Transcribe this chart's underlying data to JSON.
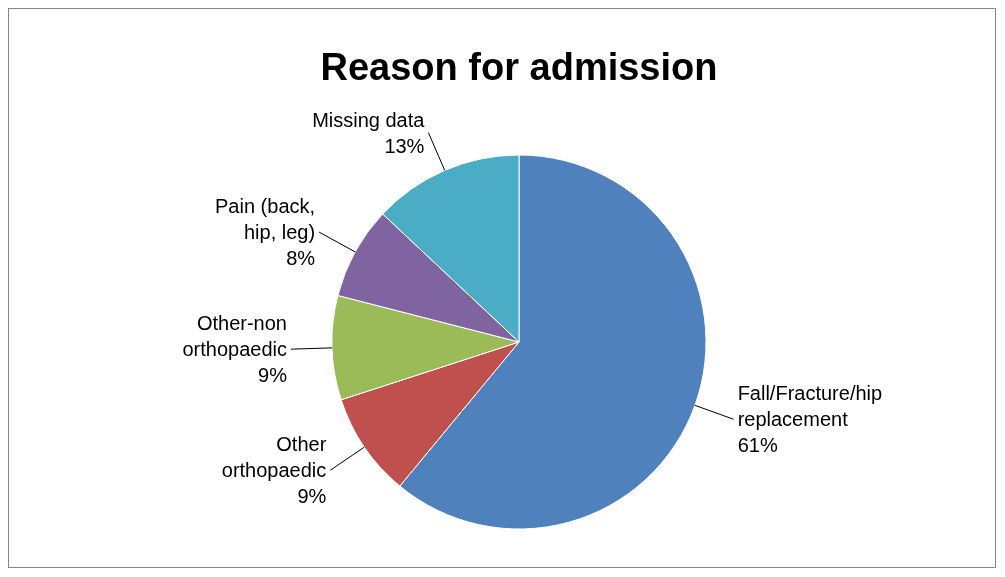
{
  "chart_data": {
    "type": "pie",
    "title": "Reason for admission",
    "categories": [
      "Fall/Fracture/hip replacement",
      "Other orthopaedic",
      "Other-non orthopaedic",
      "Pain (back, hip, leg)",
      "Missing data"
    ],
    "values": [
      61,
      9,
      9,
      8,
      13
    ],
    "value_labels": [
      "61%",
      "9%",
      "9%",
      "8%",
      "13%"
    ],
    "colors": [
      "#4f81bd",
      "#c0504d",
      "#9bbb59",
      "#8064a2",
      "#4bacc6"
    ]
  }
}
